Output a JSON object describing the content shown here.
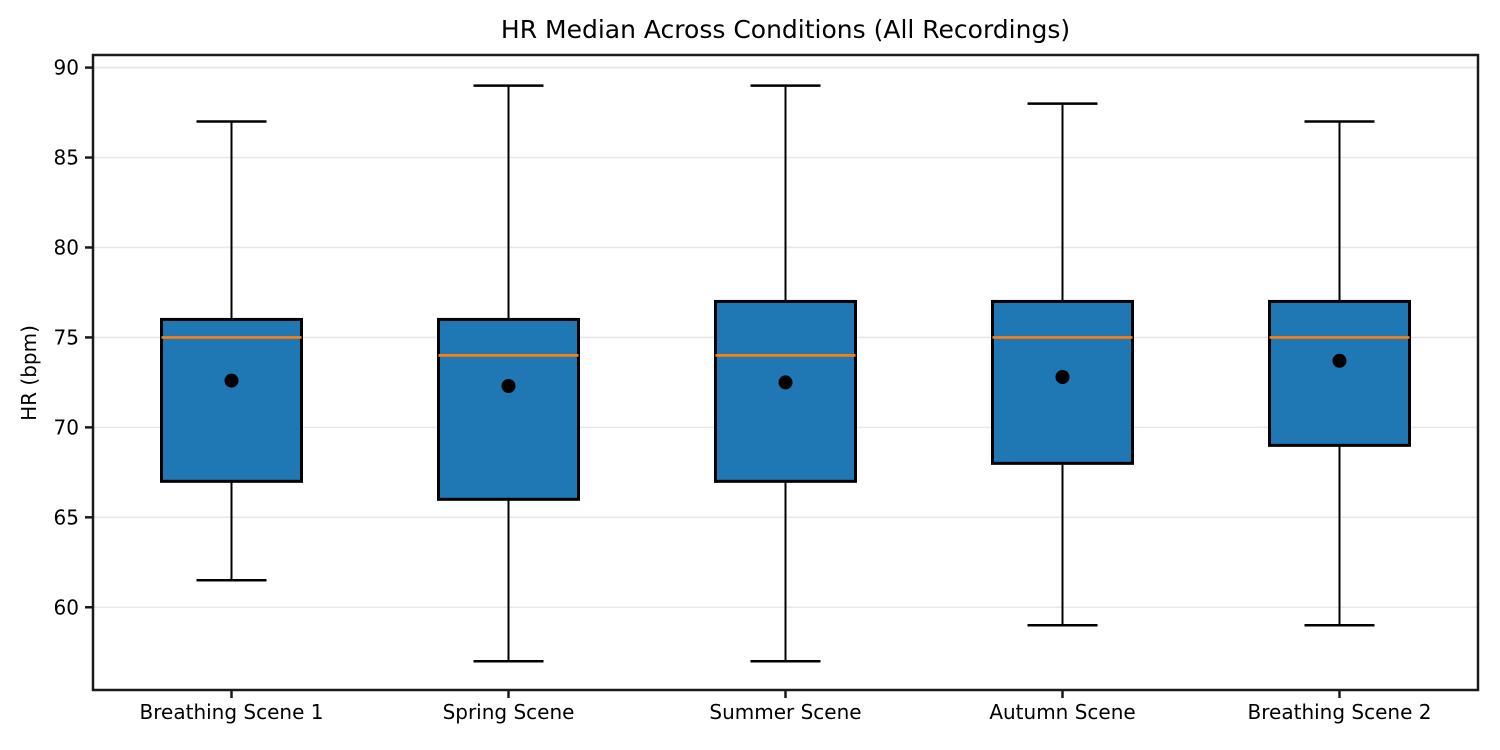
{
  "chart_data": {
    "type": "boxplot",
    "title": "HR Median Across Conditions (All Recordings)",
    "ylabel": "HR (bpm)",
    "xlabel": "",
    "categories": [
      "Breathing Scene 1",
      "Spring Scene",
      "Summer Scene",
      "Autumn Scene",
      "Breathing Scene 2"
    ],
    "series": [
      {
        "name": "Breathing Scene 1",
        "whisker_low": 61.5,
        "q1": 67,
        "median": 75,
        "q3": 76,
        "whisker_high": 87,
        "mean": 72.6
      },
      {
        "name": "Spring Scene",
        "whisker_low": 57,
        "q1": 66,
        "median": 74,
        "q3": 76,
        "whisker_high": 89,
        "mean": 72.3
      },
      {
        "name": "Summer Scene",
        "whisker_low": 57,
        "q1": 67,
        "median": 74,
        "q3": 77,
        "whisker_high": 89,
        "mean": 72.5
      },
      {
        "name": "Autumn Scene",
        "whisker_low": 59,
        "q1": 68,
        "median": 75,
        "q3": 77,
        "whisker_high": 88,
        "mean": 72.8
      },
      {
        "name": "Breathing Scene 2",
        "whisker_low": 59,
        "q1": 69,
        "median": 75,
        "q3": 77,
        "whisker_high": 87,
        "mean": 73.7
      }
    ],
    "yticks": [
      60,
      65,
      70,
      75,
      80,
      85,
      90
    ],
    "ylim": [
      55.4,
      90.7
    ],
    "grid": "horizontal",
    "legend": "none",
    "colors": {
      "box_fill": "#1f77b4",
      "box_edge": "#000000",
      "median_line": "#ff7f0e",
      "whisker": "#000000",
      "mean_marker": "#000000",
      "grid_line": "#e7e7e7",
      "spine": "#1a1a1a",
      "tick_label": "#000000"
    }
  }
}
